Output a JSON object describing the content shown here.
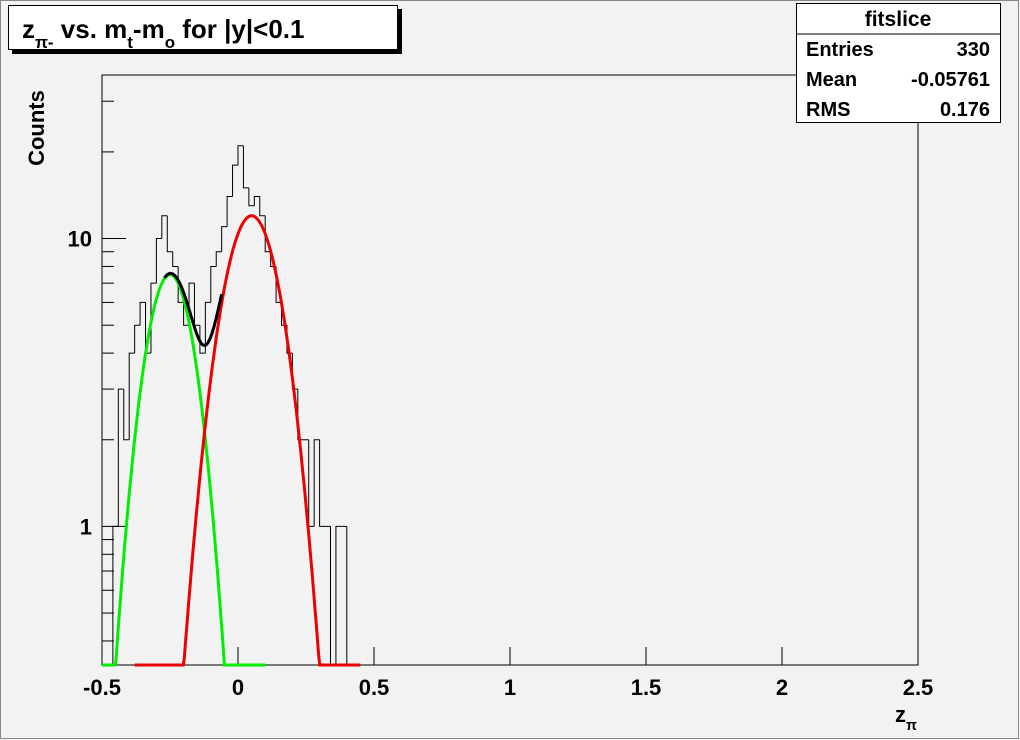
{
  "chart_data": {
    "type": "histogram",
    "title": [
      {
        "text": "z"
      },
      {
        "text": "π-",
        "sub": true
      },
      {
        "text": " vs. m"
      },
      {
        "text": "t",
        "sub": true
      },
      {
        "text": "-m"
      },
      {
        "text": "o",
        "sub": true
      },
      {
        "text": " for |y|<0.1"
      }
    ],
    "x_label": [
      {
        "text": "z"
      },
      {
        "text": "π",
        "sub": true
      }
    ],
    "y_label": "Counts",
    "stats": {
      "title": "fitslice",
      "rows": [
        [
          "Entries",
          330
        ],
        [
          "Mean",
          -0.05761
        ],
        [
          "RMS",
          0.176
        ]
      ]
    },
    "log_y": true,
    "xlim": [
      -0.5,
      2.5
    ],
    "xticks": [
      -0.5,
      0,
      0.5,
      1,
      1.5,
      2,
      2.5
    ],
    "ylim": [
      0.33,
      37
    ],
    "yticks": [
      1,
      10
    ],
    "yminorticks": [
      0.4,
      0.5,
      0.6,
      0.7,
      0.8,
      0.9,
      2,
      3,
      4,
      5,
      6,
      7,
      8,
      9,
      20,
      30
    ],
    "color": "#000000",
    "bins": [
      -0.5,
      -0.48,
      -0.46,
      -0.44,
      -0.42,
      -0.4,
      -0.38,
      -0.36,
      -0.34,
      -0.32,
      -0.3,
      -0.28,
      -0.26,
      -0.24,
      -0.22,
      -0.2,
      -0.18,
      -0.16,
      -0.14,
      -0.12,
      -0.1,
      -0.08,
      -0.06,
      -0.04,
      -0.02,
      0,
      0.02,
      0.04,
      0.06,
      0.08,
      0.1,
      0.12,
      0.14,
      0.16,
      0.18,
      0.2,
      0.22,
      0.24,
      0.26,
      0.28,
      0.3,
      0.32,
      0.34,
      0.36,
      0.38,
      0.4,
      0.42,
      0.44,
      0.46,
      0.48,
      0.5
    ],
    "counts": [
      0,
      0,
      1,
      3,
      2,
      4,
      5,
      6,
      4,
      7,
      10,
      12,
      9,
      8,
      6,
      5,
      7,
      5,
      4,
      6,
      8,
      9,
      11,
      14,
      18,
      21,
      15,
      13,
      14,
      12,
      9,
      8,
      6,
      5,
      4,
      3,
      2,
      2,
      1,
      2,
      1,
      1,
      0,
      1,
      1,
      0,
      0,
      0,
      0,
      0
    ],
    "fits": [
      {
        "color": "#00ee00",
        "range": [
          -0.5,
          0.1
        ],
        "gaussians": [
          [
            7.5,
            -0.25,
            0.08
          ]
        ]
      },
      {
        "color": "#ee0000",
        "range": [
          -0.38,
          0.45
        ],
        "gaussians": [
          [
            12,
            0.05,
            0.093
          ]
        ]
      },
      {
        "color": "#000000",
        "range": [
          -0.27,
          -0.06
        ],
        "gaussians": [
          [
            7.5,
            -0.25,
            0.08
          ],
          [
            12,
            0.05,
            0.093
          ]
        ]
      }
    ]
  }
}
